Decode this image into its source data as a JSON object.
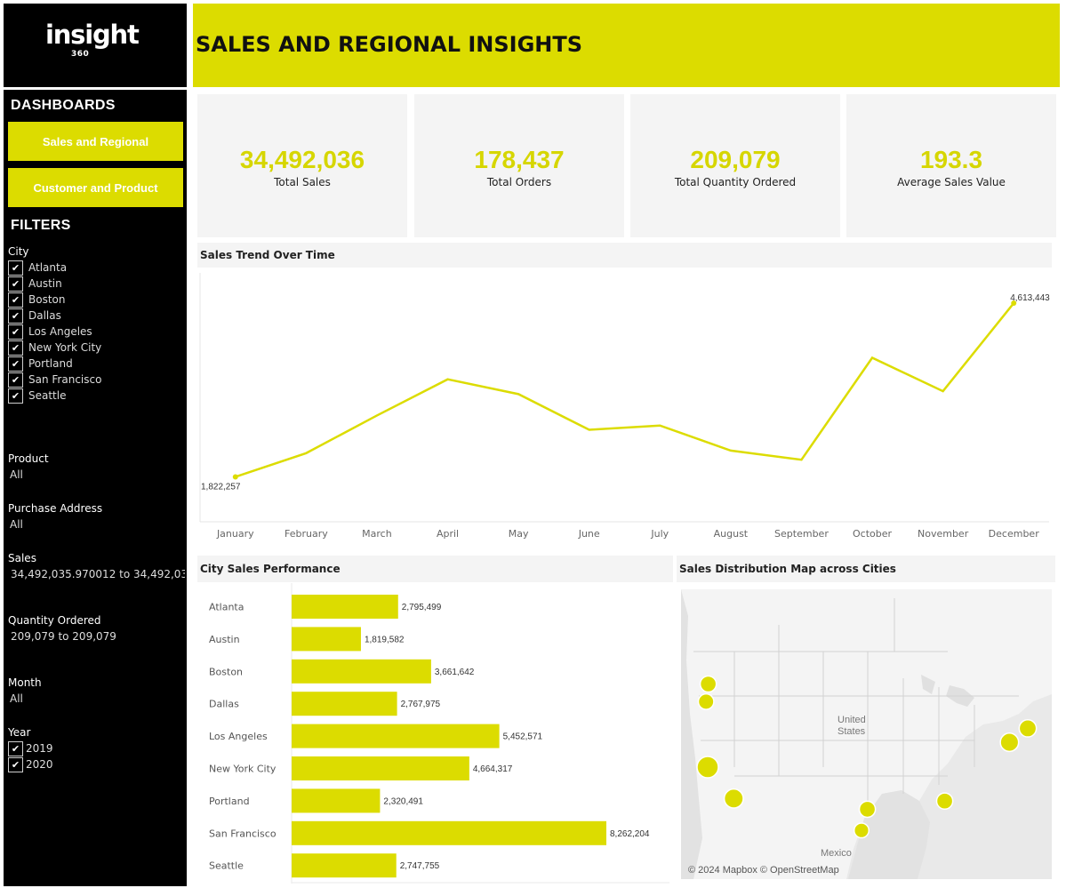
{
  "brand": {
    "name": "insight",
    "suffix": "360"
  },
  "header": {
    "title": "SALES AND REGIONAL INSIGHTS"
  },
  "sidebar": {
    "dashboards_heading": "DASHBOARDS",
    "nav": [
      {
        "label": "Sales and Regional"
      },
      {
        "label": "Customer and Product"
      }
    ],
    "filters_heading": "FILTERS",
    "city": {
      "label": "City",
      "options": [
        {
          "label": "Atlanta",
          "checked": true
        },
        {
          "label": "Austin",
          "checked": true
        },
        {
          "label": "Boston",
          "checked": true
        },
        {
          "label": "Dallas",
          "checked": true
        },
        {
          "label": "Los Angeles",
          "checked": true
        },
        {
          "label": "New York City",
          "checked": true
        },
        {
          "label": "Portland",
          "checked": true
        },
        {
          "label": "San Francisco",
          "checked": true
        },
        {
          "label": "Seattle",
          "checked": true
        }
      ]
    },
    "product": {
      "label": "Product",
      "value": "All"
    },
    "purchase_address": {
      "label": "Purchase Address",
      "value": "All"
    },
    "sales": {
      "label": "Sales",
      "value": "34,492,035.970012 to 34,492,03.."
    },
    "quantity": {
      "label": "Quantity Ordered",
      "value": "209,079 to 209,079"
    },
    "month": {
      "label": "Month",
      "value": "All"
    },
    "year": {
      "label": "Year",
      "options": [
        {
          "label": "2019",
          "checked": true
        },
        {
          "label": "2020",
          "checked": true
        }
      ]
    },
    "check_glyph": "✔"
  },
  "kpis": [
    {
      "value": "34,492,036",
      "label": "Total Sales"
    },
    {
      "value": "178,437",
      "label": "Total Orders"
    },
    {
      "value": "209,079",
      "label": "Total Quantity Ordered"
    },
    {
      "value": "193.3",
      "label": "Average Sales Value"
    }
  ],
  "colors": {
    "accent": "#dcdc00",
    "kpi_value": "#d6d600",
    "panel_bg": "#f4f4f4",
    "sidebar_bg": "#000000"
  },
  "chart_data": [
    {
      "type": "line",
      "title": "Sales Trend Over Time",
      "x": [
        "January",
        "February",
        "March",
        "April",
        "May",
        "June",
        "July",
        "August",
        "September",
        "October",
        "November",
        "December"
      ],
      "series": [
        {
          "values": [
            1822257,
            2203000,
            2808000,
            3390000,
            3152000,
            2578000,
            2647000,
            2244000,
            2097000,
            3736000,
            3199000,
            4613443
          ]
        }
      ],
      "data_labels": [
        {
          "index": 0,
          "text": "1,822,257"
        },
        {
          "index": 11,
          "text": "4,613,443"
        }
      ],
      "ylim": [
        1100000,
        5100000
      ],
      "grid": false,
      "color": "#dcdc00"
    },
    {
      "type": "bar",
      "orientation": "horizontal",
      "title": "City Sales Performance",
      "categories": [
        "Atlanta",
        "Austin",
        "Boston",
        "Dallas",
        "Los Angeles",
        "New York City",
        "Portland",
        "San Francisco",
        "Seattle"
      ],
      "values": [
        2795499,
        1819582,
        3661642,
        2767975,
        5452571,
        4664317,
        2320491,
        8262204,
        2747755
      ],
      "value_labels": [
        "2,795,499",
        "1,819,582",
        "3,661,642",
        "2,767,975",
        "5,452,571",
        "4,664,317",
        "2,320,491",
        "8,262,204",
        "2,747,755"
      ],
      "xlim": [
        0,
        8262204
      ],
      "color": "#dcdc00"
    }
  ],
  "map": {
    "title": "Sales Distribution Map across Cities",
    "labels": {
      "country_us": "United\nStates",
      "country_mx": "Mexico"
    },
    "credit": "© 2024 Mapbox © OpenStreetMap",
    "cities": [
      {
        "name": "Seattle",
        "lon": -122.33,
        "lat": 47.61,
        "sales": 2747755
      },
      {
        "name": "Portland",
        "lon": -122.68,
        "lat": 45.52,
        "sales": 2320491
      },
      {
        "name": "San Francisco",
        "lon": -122.42,
        "lat": 37.77,
        "sales": 8262204
      },
      {
        "name": "Los Angeles",
        "lon": -118.24,
        "lat": 34.05,
        "sales": 5452571
      },
      {
        "name": "Dallas",
        "lon": -96.8,
        "lat": 32.78,
        "sales": 2767975
      },
      {
        "name": "Austin",
        "lon": -97.74,
        "lat": 30.27,
        "sales": 1819582
      },
      {
        "name": "Atlanta",
        "lon": -84.39,
        "lat": 33.75,
        "sales": 2795499
      },
      {
        "name": "New York City",
        "lon": -74.0,
        "lat": 40.71,
        "sales": 4664317
      },
      {
        "name": "Boston",
        "lon": -71.06,
        "lat": 42.36,
        "sales": 3661642
      }
    ]
  }
}
